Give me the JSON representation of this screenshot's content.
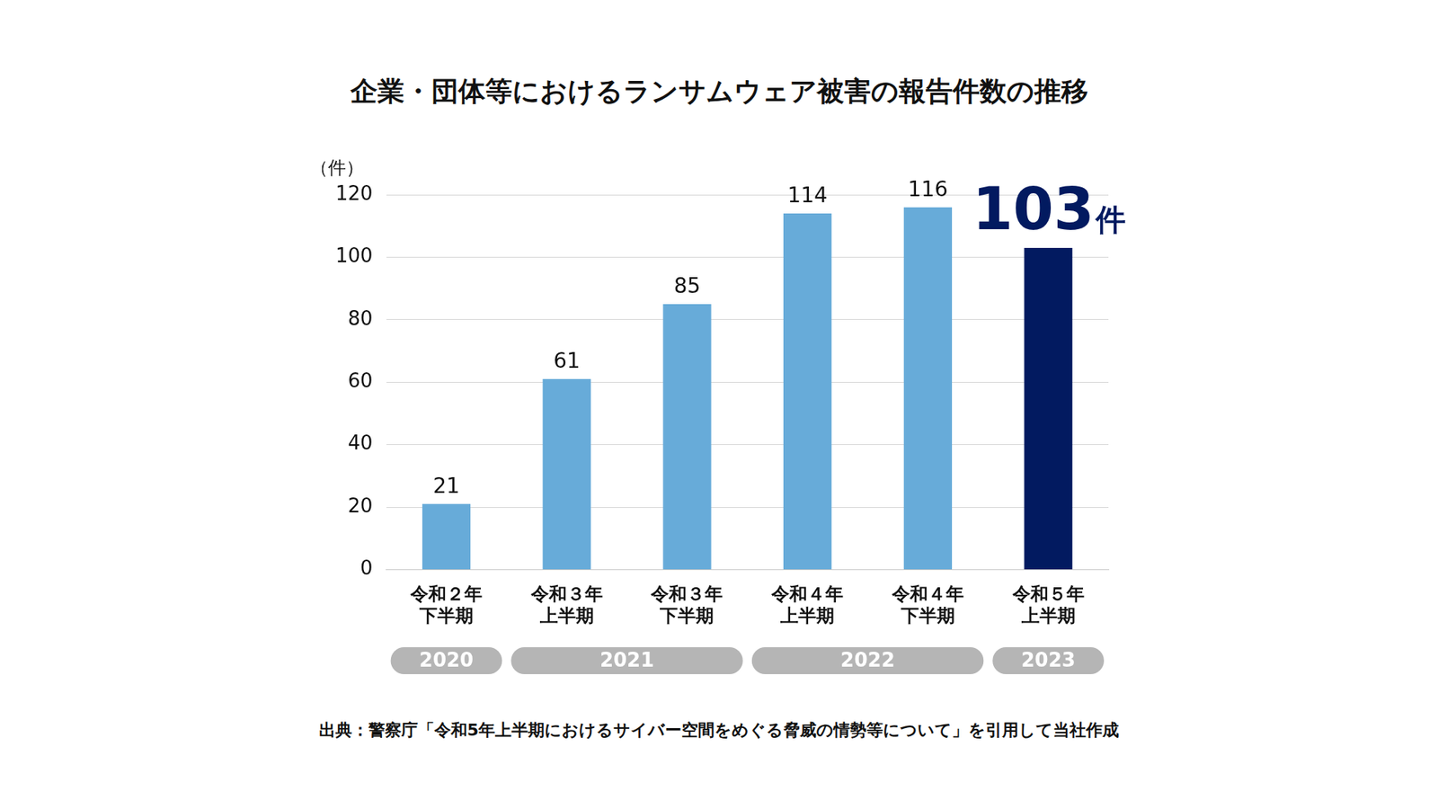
{
  "chart_data": {
    "type": "bar",
    "title": "企業・団体等におけるランサムウェア被害の報告件数の推移",
    "y_label": "（件）",
    "categories": [
      [
        "令和２年",
        "下半期"
      ],
      [
        "令和３年",
        "上半期"
      ],
      [
        "令和３年",
        "下半期"
      ],
      [
        "令和４年",
        "上半期"
      ],
      [
        "令和４年",
        "下半期"
      ],
      [
        "令和５年",
        "上半期"
      ]
    ],
    "values": [
      21,
      61,
      85,
      114,
      116,
      103
    ],
    "value_labels": [
      "21",
      "61",
      "85",
      "114",
      "116",
      "103件"
    ],
    "colors": [
      "#67abd9",
      "#67abd9",
      "#67abd9",
      "#67abd9",
      "#67abd9",
      "#021a60"
    ],
    "year_groups": [
      {
        "label": "2020",
        "span": 1
      },
      {
        "label": "2021",
        "span": 2
      },
      {
        "label": "2022",
        "span": 2
      },
      {
        "label": "2023",
        "span": 1
      }
    ],
    "ylim": [
      0,
      120
    ],
    "yticks": [
      0,
      20,
      40,
      60,
      80,
      100,
      120
    ],
    "grid": true,
    "data_labels": true,
    "source": "出典：警察庁「令和5年上半期におけるサイバー空間をめぐる脅威の情勢等について」を引用して当社作成"
  }
}
